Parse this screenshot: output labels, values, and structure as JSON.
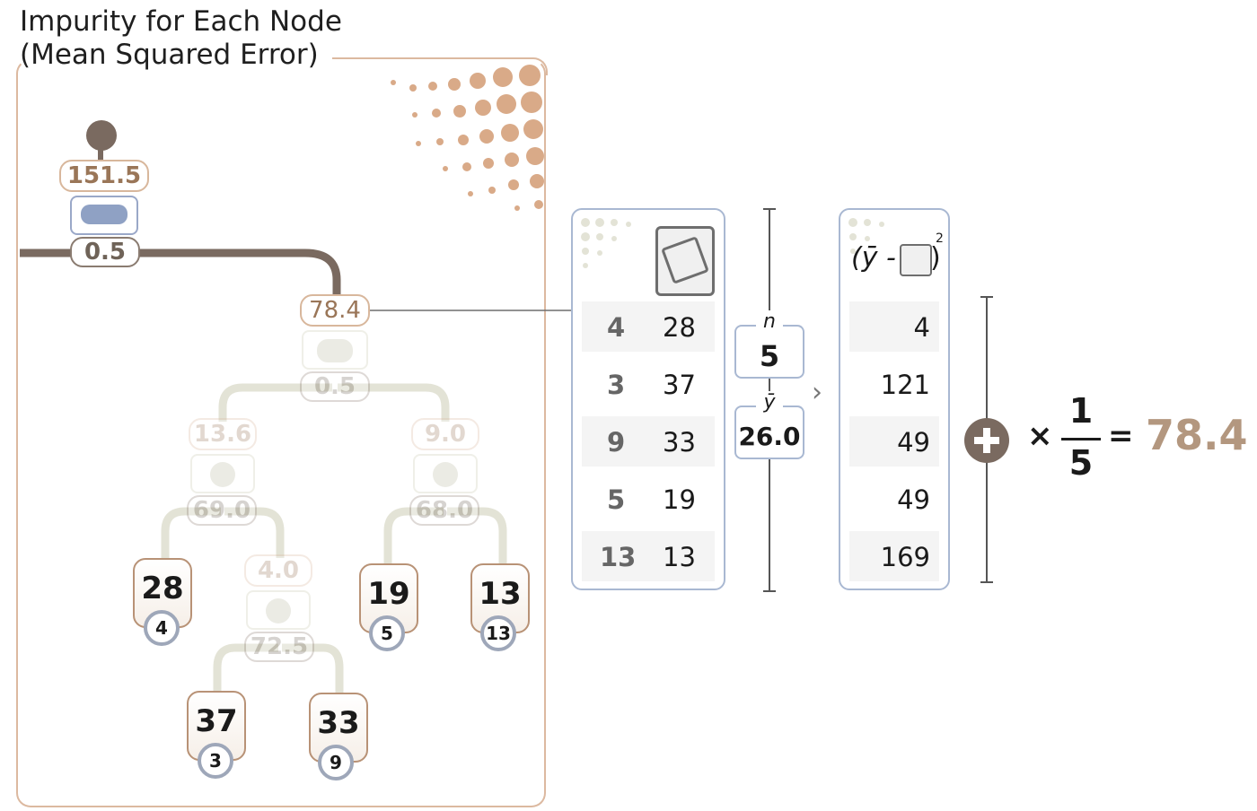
{
  "title": [
    "Impurity for Each Node",
    "(Mean Squared Error)"
  ],
  "root": {
    "impurity": "151.5",
    "threshold": "0.5"
  },
  "node": {
    "impurity": "78.4",
    "threshold": "0.5"
  },
  "children": [
    {
      "impurity": "13.6",
      "threshold": "69.0"
    },
    {
      "impurity": "9.0",
      "threshold": "68.0"
    },
    {
      "impurity": "4.0",
      "threshold": "72.5"
    }
  ],
  "leaves": [
    {
      "value": "28",
      "count": "4"
    },
    {
      "value": "19",
      "count": "5"
    },
    {
      "value": "13",
      "count": "13"
    },
    {
      "value": "37",
      "count": "3"
    },
    {
      "value": "33",
      "count": "9"
    }
  ],
  "table1": [
    {
      "id": "4",
      "y": "28"
    },
    {
      "id": "3",
      "y": "37"
    },
    {
      "id": "9",
      "y": "33"
    },
    {
      "id": "5",
      "y": "19"
    },
    {
      "id": "13",
      "y": "13"
    }
  ],
  "n": {
    "label": "n",
    "value": "5"
  },
  "mean": {
    "label": "ȳ",
    "value": "26.0"
  },
  "sq_header": {
    "open": "(ȳ -",
    "close": ")",
    "exp": "2"
  },
  "squares": [
    "4",
    "121",
    "49",
    "49",
    "169"
  ],
  "formula": {
    "times": "×",
    "numerator": "1",
    "denominator": "5",
    "equals": "=",
    "result": "78.4"
  },
  "colors": {
    "accent": "#d8b79c",
    "result": "#b3977f",
    "border": "#a9b8d2"
  }
}
